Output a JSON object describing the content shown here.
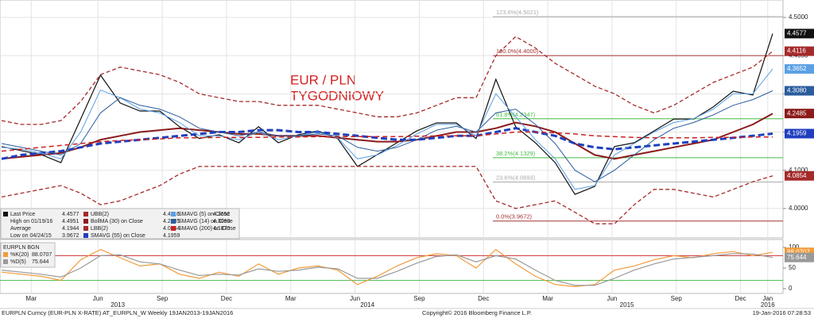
{
  "chart_data": [
    {
      "type": "line",
      "annotation": [
        "EUR / PLN",
        "TYGODNIOWY"
      ],
      "x": [
        0,
        4,
        8,
        12,
        16,
        20,
        24,
        28,
        32,
        36,
        40,
        44,
        48,
        52,
        56,
        60,
        64,
        68,
        72,
        76,
        80,
        84,
        88,
        92,
        96,
        100,
        104,
        108,
        112,
        116,
        120,
        124,
        128,
        132,
        136,
        140,
        144,
        148,
        152,
        156
      ],
      "xlim": [
        0,
        156
      ],
      "xticks": [
        {
          "value": 6,
          "label": "Mar"
        },
        {
          "value": 19.5,
          "label": "Jun"
        },
        {
          "value": 32.5,
          "label": "Sep"
        },
        {
          "value": 45.5,
          "label": "Dec"
        },
        {
          "value": 58.5,
          "label": "Mar"
        },
        {
          "value": 71.5,
          "label": "Jun"
        },
        {
          "value": 84.5,
          "label": "Sep"
        },
        {
          "value": 97.5,
          "label": "Dec"
        },
        {
          "value": 110.5,
          "label": "Mar"
        },
        {
          "value": 123.5,
          "label": "Jun"
        },
        {
          "value": 136.5,
          "label": "Sep"
        },
        {
          "value": 149.5,
          "label": "Dec"
        },
        {
          "value": 155,
          "label": "Jan"
        }
      ],
      "year_labels": [
        {
          "value": 23.5,
          "label": "2013"
        },
        {
          "value": 74,
          "label": "2014"
        },
        {
          "value": 126.5,
          "label": "2015"
        },
        {
          "value": 155,
          "label": "2016"
        }
      ],
      "ylim": [
        3.923,
        4.5456
      ],
      "yticks": [
        {
          "value": 4.5,
          "label": "4.5000"
        },
        {
          "value": 4.4,
          "label": "4.4000"
        },
        {
          "value": 4.3,
          "label": "4.3000"
        },
        {
          "value": 4.2,
          "label": "4.2000"
        },
        {
          "value": 4.1,
          "label": "4.1000"
        },
        {
          "value": 4,
          "label": "4.0000"
        }
      ],
      "grid": true,
      "fib": [
        {
          "value": 4.5021,
          "label": "123.6%(4.5021)",
          "color": "#aaaaaa"
        },
        {
          "value": 4.4,
          "label": "100.0%(4.4000)",
          "color": "#a33333"
        },
        {
          "value": 4.2347,
          "label": "61.8%(4.2347)",
          "color": "#44bb44"
        },
        {
          "value": 4.1329,
          "label": "38.2%(4.1329)",
          "color": "#44bb44"
        },
        {
          "value": 4.0693,
          "label": "23.6%(4.0693)",
          "color": "#aaaaaa"
        },
        {
          "value": 3.9672,
          "label": "0.0%(3.9672)",
          "color": "#a33333"
        }
      ],
      "series": [
        {
          "name": "Last Price",
          "legend_value": "4.4577",
          "color": "#111111",
          "width": 1.2,
          "dash": "none",
          "tag": true,
          "values": [
            4.162,
            4.151,
            4.141,
            4.12,
            4.234,
            4.349,
            4.276,
            4.255,
            4.255,
            4.214,
            4.183,
            4.193,
            4.172,
            4.214,
            4.172,
            4.193,
            4.203,
            4.183,
            4.11,
            4.141,
            4.172,
            4.203,
            4.224,
            4.224,
            4.183,
            4.338,
            4.214,
            4.172,
            4.12,
            4.037,
            4.058,
            4.162,
            4.172,
            4.203,
            4.234,
            4.234,
            4.266,
            4.307,
            4.297,
            4.4577
          ]
        },
        {
          "name": "UBB(2)",
          "legend_value": "4.4116",
          "color": "#a52a2a",
          "width": 1.3,
          "dash": "5,3",
          "tag": true,
          "values": [
            4.23,
            4.22,
            4.22,
            4.23,
            4.28,
            4.35,
            4.37,
            4.36,
            4.35,
            4.33,
            4.3,
            4.29,
            4.28,
            4.28,
            4.27,
            4.27,
            4.27,
            4.26,
            4.25,
            4.24,
            4.24,
            4.25,
            4.27,
            4.29,
            4.29,
            4.4,
            4.45,
            4.42,
            4.38,
            4.35,
            4.32,
            4.3,
            4.27,
            4.25,
            4.27,
            4.3,
            4.33,
            4.35,
            4.37,
            4.4116
          ]
        },
        {
          "name": "BollMA (30) on Close",
          "legend_value": "4.2485",
          "color": "#8b1a1a",
          "width": 2,
          "dash": "none",
          "tag": true,
          "values": [
            4.13,
            4.135,
            4.14,
            4.145,
            4.16,
            4.18,
            4.19,
            4.2,
            4.205,
            4.21,
            4.205,
            4.2,
            4.195,
            4.195,
            4.19,
            4.19,
            4.19,
            4.185,
            4.18,
            4.175,
            4.175,
            4.18,
            4.19,
            4.2,
            4.2,
            4.21,
            4.225,
            4.215,
            4.2,
            4.17,
            4.14,
            4.13,
            4.14,
            4.15,
            4.16,
            4.17,
            4.18,
            4.2,
            4.22,
            4.2485
          ]
        },
        {
          "name": "LBB(2)",
          "legend_value": "4.0854",
          "color": "#a52a2a",
          "width": 1.3,
          "dash": "5,3",
          "tag": true,
          "values": [
            4.03,
            4.04,
            4.05,
            4.06,
            4.04,
            4.01,
            4.02,
            4.04,
            4.06,
            4.09,
            4.11,
            4.11,
            4.11,
            4.11,
            4.11,
            4.11,
            4.11,
            4.11,
            4.11,
            4.11,
            4.11,
            4.11,
            4.11,
            4.11,
            4.11,
            4.02,
            4,
            4.01,
            4.02,
            3.99,
            3.96,
            3.96,
            4.01,
            4.05,
            4.05,
            4.04,
            4.03,
            4.05,
            4.07,
            4.0854
          ]
        },
        {
          "name": "SMAVG (55) on Close",
          "legend_value": "4.1959",
          "color": "#1f3fbf",
          "width": 3,
          "dash": "8,4",
          "tag": true,
          "values": [
            4.13,
            4.14,
            4.145,
            4.15,
            4.16,
            4.17,
            4.175,
            4.18,
            4.185,
            4.19,
            4.195,
            4.2,
            4.2,
            4.205,
            4.205,
            4.2,
            4.2,
            4.195,
            4.19,
            4.185,
            4.18,
            4.18,
            4.185,
            4.19,
            4.19,
            4.2,
            4.21,
            4.2,
            4.19,
            4.17,
            4.16,
            4.155,
            4.16,
            4.165,
            4.17,
            4.175,
            4.18,
            4.185,
            4.19,
            4.1959
          ]
        },
        {
          "name": "SMAVG (5) on Close",
          "legend_value": "4.3652",
          "color": "#5aa0e6",
          "width": 1,
          "dash": "none",
          "tag": true,
          "values": [
            4.16,
            4.155,
            4.145,
            4.13,
            4.2,
            4.31,
            4.29,
            4.26,
            4.25,
            4.225,
            4.19,
            4.19,
            4.18,
            4.2,
            4.18,
            4.19,
            4.2,
            4.185,
            4.13,
            4.14,
            4.165,
            4.195,
            4.22,
            4.22,
            4.19,
            4.3,
            4.24,
            4.18,
            4.13,
            4.05,
            4.06,
            4.14,
            4.17,
            4.2,
            4.225,
            4.235,
            4.26,
            4.3,
            4.3,
            4.3652
          ]
        },
        {
          "name": "SMAVG (14) on Close",
          "legend_value": "4.3080",
          "color": "#2b5c9e",
          "width": 1,
          "dash": "none",
          "tag": true,
          "values": [
            4.17,
            4.16,
            4.15,
            4.14,
            4.17,
            4.25,
            4.29,
            4.27,
            4.26,
            4.24,
            4.21,
            4.2,
            4.19,
            4.2,
            4.19,
            4.19,
            4.195,
            4.19,
            4.16,
            4.15,
            4.16,
            4.18,
            4.205,
            4.215,
            4.2,
            4.25,
            4.26,
            4.22,
            4.17,
            4.1,
            4.07,
            4.1,
            4.14,
            4.18,
            4.21,
            4.225,
            4.245,
            4.27,
            4.285,
            4.308
          ]
        },
        {
          "name": "SMAVG (200) on Close",
          "legend_value": "4.1870",
          "color": "#cc2222",
          "width": 1.5,
          "dash": "6,4",
          "tag": false,
          "values": [
            4.15,
            4.155,
            4.16,
            4.165,
            4.17,
            4.175,
            4.178,
            4.18,
            4.182,
            4.185,
            4.185,
            4.186,
            4.186,
            4.186,
            4.187,
            4.187,
            4.188,
            4.188,
            4.188,
            4.188,
            4.188,
            4.189,
            4.19,
            4.19,
            4.19,
            4.195,
            4.2,
            4.2,
            4.198,
            4.195,
            4.19,
            4.188,
            4.186,
            4.185,
            4.185,
            4.185,
            4.186,
            4.186,
            4.187,
            4.187
          ]
        }
      ],
      "stats": [
        {
          "name": "High on 01/19/16",
          "value": "4.4951"
        },
        {
          "name": "Average",
          "value": "4.1944"
        },
        {
          "name": "Low on 04/24/15",
          "value": "3.9672"
        }
      ]
    },
    {
      "type": "line",
      "title": "EURPLN BGN",
      "ylim": [
        0,
        100
      ],
      "yticks": [
        100,
        50,
        0
      ],
      "levels": [
        80,
        20
      ],
      "level_colors": [
        "#cc3333",
        "#44bb44"
      ],
      "series": [
        {
          "name": "%K(20)",
          "legend_value": "88.0707",
          "color": "#f29a3a",
          "values": [
            40,
            35,
            30,
            20,
            70,
            95,
            75,
            55,
            60,
            35,
            25,
            40,
            30,
            60,
            35,
            50,
            55,
            45,
            10,
            30,
            55,
            75,
            85,
            80,
            50,
            95,
            60,
            30,
            10,
            5,
            10,
            45,
            55,
            70,
            80,
            75,
            85,
            90,
            80,
            88.0707
          ]
        },
        {
          "name": "%D(5)",
          "legend_value": "75.644",
          "color": "#999999",
          "values": [
            45,
            40,
            35,
            28,
            50,
            80,
            82,
            65,
            60,
            45,
            32,
            35,
            33,
            48,
            42,
            45,
            52,
            48,
            25,
            25,
            42,
            62,
            78,
            82,
            65,
            80,
            72,
            45,
            20,
            8,
            8,
            25,
            45,
            60,
            72,
            76,
            80,
            85,
            84,
            75.644
          ]
        }
      ]
    }
  ],
  "footer": {
    "left": "EURPLN Curncy (EUR-PLN X-RATE) AT_EURPLN_W  Weekly 19JAN2013-19JAN2016",
    "center": "Copyright© 2016 Bloomberg Finance L.P.",
    "right": "19-Jan-2016 07:28:53"
  }
}
